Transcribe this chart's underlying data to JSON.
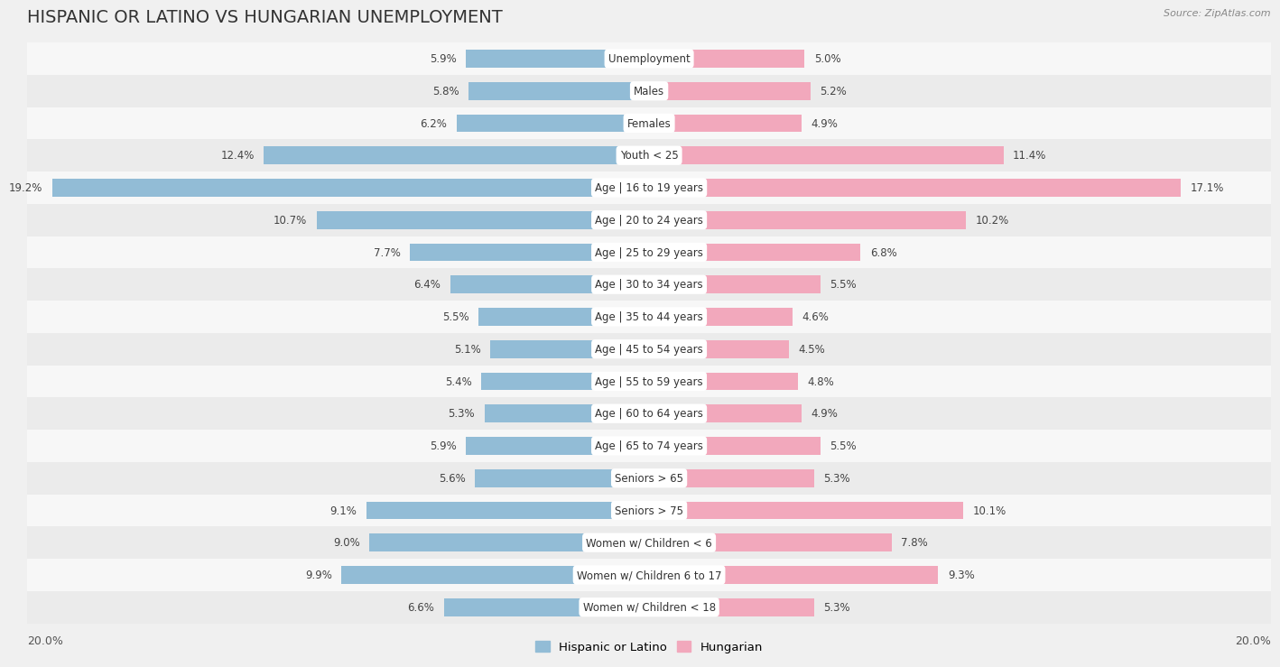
{
  "title": "HISPANIC OR LATINO VS HUNGARIAN UNEMPLOYMENT",
  "source": "Source: ZipAtlas.com",
  "categories": [
    "Unemployment",
    "Males",
    "Females",
    "Youth < 25",
    "Age | 16 to 19 years",
    "Age | 20 to 24 years",
    "Age | 25 to 29 years",
    "Age | 30 to 34 years",
    "Age | 35 to 44 years",
    "Age | 45 to 54 years",
    "Age | 55 to 59 years",
    "Age | 60 to 64 years",
    "Age | 65 to 74 years",
    "Seniors > 65",
    "Seniors > 75",
    "Women w/ Children < 6",
    "Women w/ Children 6 to 17",
    "Women w/ Children < 18"
  ],
  "hispanic_values": [
    5.9,
    5.8,
    6.2,
    12.4,
    19.2,
    10.7,
    7.7,
    6.4,
    5.5,
    5.1,
    5.4,
    5.3,
    5.9,
    5.6,
    9.1,
    9.0,
    9.9,
    6.6
  ],
  "hungarian_values": [
    5.0,
    5.2,
    4.9,
    11.4,
    17.1,
    10.2,
    6.8,
    5.5,
    4.6,
    4.5,
    4.8,
    4.9,
    5.5,
    5.3,
    10.1,
    7.8,
    9.3,
    5.3
  ],
  "hispanic_color": "#92bcd6",
  "hungarian_color": "#f2a8bc",
  "row_color_even": "#f5f5f5",
  "row_color_odd": "#e8e8e8",
  "background_color": "#f0f0f0",
  "xlim": 20.0,
  "legend_hispanic": "Hispanic or Latino",
  "legend_hungarian": "Hungarian",
  "title_fontsize": 14,
  "label_fontsize": 8.5,
  "value_fontsize": 8.5
}
